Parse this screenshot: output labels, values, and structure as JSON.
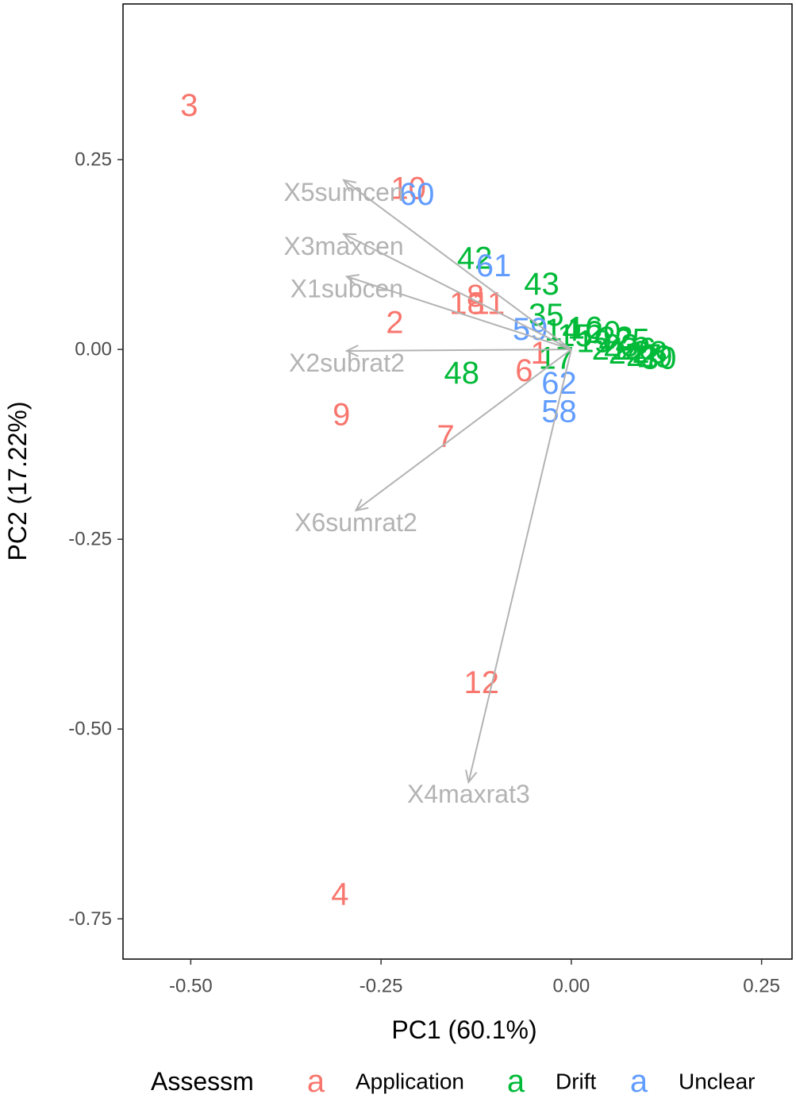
{
  "chart_data": {
    "type": "biplot",
    "xlabel": "PC1 (60.1%)",
    "ylabel": "PC2 (17.22%)",
    "xlim": [
      -0.589,
      0.29
    ],
    "ylim": [
      -0.803,
      0.455
    ],
    "xticks": [
      {
        "value": -0.5,
        "label": "-0.50"
      },
      -0.25,
      {
        "value": 0,
        "label": "0.00"
      },
      0.25
    ],
    "yticks": [
      {
        "value": -0.75,
        "label": "-0.75"
      },
      {
        "value": -0.5,
        "label": "-0.50"
      },
      -0.25,
      {
        "value": 0,
        "label": "0.00"
      },
      0.25
    ],
    "grid": false,
    "legend_title": "Assessm",
    "legend_position": "bottom",
    "legend_key_glyph": "a",
    "loading_color": "#b3b3b3",
    "loadings": [
      {
        "name": "X5sumcen",
        "x": -0.299,
        "y": 0.223
      },
      {
        "name": "X3maxcen",
        "x": -0.299,
        "y": 0.152
      },
      {
        "name": "X1subcen",
        "x": -0.295,
        "y": 0.096
      },
      {
        "name": "X2subrat2",
        "x": -0.295,
        "y": -0.002
      },
      {
        "name": "X6sumrat2",
        "x": -0.283,
        "y": -0.212
      },
      {
        "name": "X4maxrat3",
        "x": -0.135,
        "y": -0.57
      }
    ],
    "series": [
      {
        "name": "Application",
        "color": "#F8766D",
        "labels": [
          "3",
          "10",
          "8",
          "18",
          "11",
          "2",
          "9",
          "7",
          "6",
          "1",
          "12",
          "4"
        ],
        "x": [
          -0.502,
          -0.214,
          -0.126,
          -0.137,
          -0.109,
          -0.232,
          -0.302,
          -0.165,
          -0.062,
          -0.042,
          -0.118,
          -0.304
        ],
        "y": [
          0.321,
          0.212,
          0.07,
          0.06,
          0.06,
          0.035,
          -0.086,
          -0.115,
          -0.028,
          -0.005,
          -0.439,
          -0.718
        ]
      },
      {
        "name": "Drift",
        "color": "#00BA38",
        "labels": [
          "42",
          "43",
          "48",
          "35",
          "14",
          "15",
          "16",
          "17",
          "19",
          "20",
          "21",
          "22",
          "23",
          "24",
          "25",
          "26",
          "27",
          "28",
          "29",
          "30"
        ],
        "x": [
          -0.127,
          -0.039,
          -0.144,
          -0.033,
          -0.012,
          0.005,
          0.018,
          -0.02,
          0.03,
          0.042,
          0.05,
          0.058,
          0.065,
          0.072,
          0.08,
          0.088,
          0.095,
          0.103,
          0.11,
          0.115
        ],
        "y": [
          0.12,
          0.086,
          -0.031,
          0.045,
          0.025,
          0.018,
          0.028,
          -0.012,
          0.01,
          0.022,
          0.0,
          0.015,
          0.005,
          -0.005,
          0.012,
          0.0,
          -0.008,
          -0.004,
          -0.01,
          -0.012
        ]
      },
      {
        "name": "Unclear",
        "color": "#619CFF",
        "labels": [
          "60",
          "61",
          "59",
          "62",
          "58"
        ],
        "x": [
          -0.203,
          -0.102,
          -0.054,
          -0.016,
          -0.016
        ],
        "y": [
          0.204,
          0.11,
          0.026,
          -0.045,
          -0.082
        ]
      }
    ]
  }
}
